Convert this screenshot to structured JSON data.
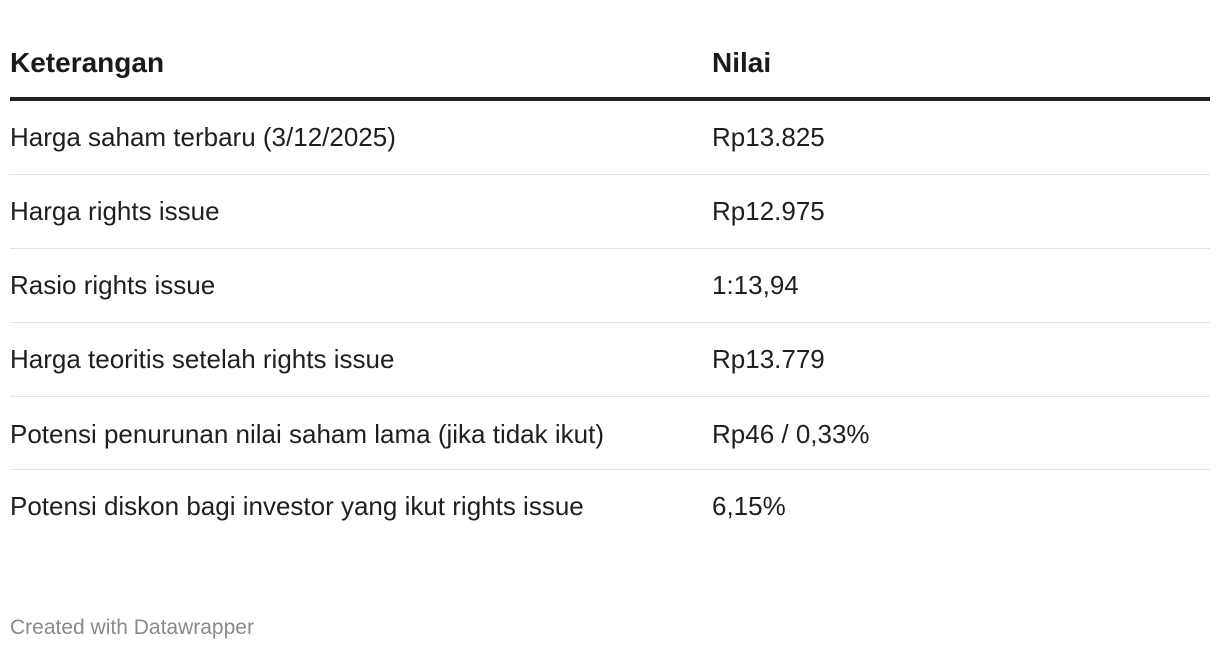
{
  "chart_data": {
    "type": "table",
    "columns": [
      "Keterangan",
      "Nilai"
    ],
    "rows": [
      [
        "Harga saham terbaru (3/12/2025)",
        "Rp13.825"
      ],
      [
        "Harga rights issue",
        "Rp12.975"
      ],
      [
        "Rasio rights issue",
        "1:13,94"
      ],
      [
        "Harga teoritis setelah rights issue",
        "Rp13.779"
      ],
      [
        "Potensi penurunan nilai saham lama (jika tidak ikut)",
        "Rp46 / 0,33%"
      ],
      [
        "Potensi diskon bagi investor yang ikut rights issue",
        "6,15%"
      ]
    ]
  },
  "footer": {
    "credit": "Created with Datawrapper"
  },
  "colors": {
    "text": "#1f1f1f",
    "header_rule": "#222222",
    "row_rule": "#e3e3e3",
    "footer_text": "#8a8a8a"
  }
}
